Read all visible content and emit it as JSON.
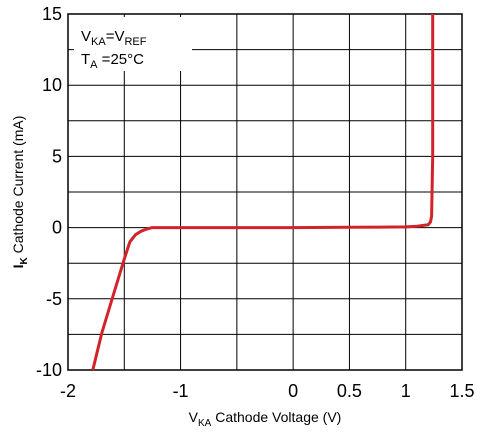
{
  "chart_data": {
    "type": "line",
    "xlim": [
      -2,
      1.5
    ],
    "ylim": [
      -10,
      15
    ],
    "x_ticks": [
      "-2",
      "-1",
      "0",
      "0.5",
      "1",
      "1.5"
    ],
    "x_tick_values": [
      -2,
      -1.5,
      -1,
      -0.5,
      0,
      0.5,
      1,
      1.5
    ],
    "x_tick_label_values": [
      -2,
      -1,
      0,
      0.5,
      1,
      1.5
    ],
    "y_ticks": [
      "15",
      "10",
      "5",
      "0",
      "-5",
      "-10"
    ],
    "y_tick_values": [
      15,
      10,
      5,
      0,
      -5,
      -10
    ],
    "y_grid_values": [
      15,
      12.5,
      10,
      7.5,
      5,
      2.5,
      0,
      -2.5,
      -5,
      -7.5,
      -10
    ],
    "grid": true,
    "xlabel": {
      "main": "V",
      "sub": "KA",
      "rest": " Cathode Voltage (V)"
    },
    "ylabel": {
      "main": "I",
      "sub": "K",
      "rest": " Cathode Current (mA)"
    },
    "annotation": {
      "line1_a": "V",
      "line1_a_sub": "KA",
      "line1_b": "=V",
      "line1_b_sub": "REF",
      "line2_a": "T",
      "line2_a_sub": "A",
      "line2_b": " =25°C"
    },
    "series": [
      {
        "color": "#d2232a",
        "x": [
          -1.78,
          -1.7,
          -1.6,
          -1.5,
          -1.45,
          -1.4,
          -1.35,
          -1.3,
          -1.25,
          -1.2,
          -1.1,
          -1.0,
          -0.5,
          0,
          0.5,
          1.0,
          1.1,
          1.2,
          1.22,
          1.23,
          1.24,
          1.24,
          1.24
        ],
        "y": [
          -10,
          -7.4,
          -4.8,
          -2.2,
          -1.0,
          -0.5,
          -0.25,
          -0.1,
          0,
          0,
          0,
          0,
          0,
          0,
          0.02,
          0.05,
          0.1,
          0.2,
          0.4,
          0.8,
          5,
          10,
          15
        ]
      }
    ]
  }
}
